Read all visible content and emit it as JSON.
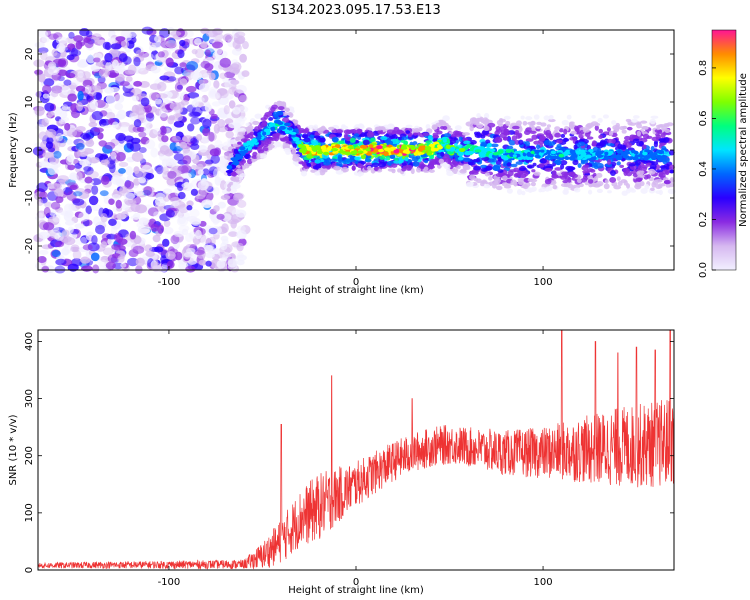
{
  "title": "S134.2023.095.17.53.E13",
  "chart_data": [
    {
      "type": "heatmap",
      "xlabel": "Height of straight line (km)",
      "ylabel": "Frequency (Hz)",
      "xlim": [
        -170,
        170
      ],
      "ylim": [
        -25,
        25
      ],
      "xticks": [
        -100,
        0,
        100
      ],
      "yticks": [
        -20,
        -10,
        0,
        10,
        20
      ],
      "colorbar": {
        "label": "Normalized spectral amplitude",
        "range": [
          0,
          0.95
        ],
        "ticks": [
          0.0,
          0.2,
          0.4,
          0.6,
          0.8
        ],
        "colors": [
          "#f2f0ff",
          "#d6b8f0",
          "#8a2be2",
          "#2a00ff",
          "#0066ff",
          "#00e5ff",
          "#00ff7f",
          "#7fff00",
          "#ffff00",
          "#ff8c00",
          "#ff1493"
        ]
      },
      "track": {
        "x": [
          -68,
          -60,
          -50,
          -42,
          -38,
          -35,
          -32,
          -28,
          -20,
          0,
          20,
          40,
          48,
          50,
          60,
          80,
          100,
          120,
          140,
          165
        ],
        "y": [
          -4,
          0,
          3,
          6,
          5,
          4,
          2,
          0,
          0,
          0,
          0,
          0,
          2,
          0,
          0,
          -1,
          -1,
          -1,
          -1,
          -1
        ],
        "intensity": [
          0.35,
          0.45,
          0.5,
          0.55,
          0.5,
          0.45,
          0.5,
          0.8,
          0.9,
          0.85,
          0.95,
          0.85,
          0.6,
          0.65,
          0.6,
          0.55,
          0.5,
          0.5,
          0.45,
          0.45
        ]
      },
      "noise_region": [
        -170,
        -65
      ]
    },
    {
      "type": "line",
      "xlabel": "Height of straight line (km)",
      "ylabel": "SNR (10 * v/v)",
      "xlim": [
        -170,
        170
      ],
      "ylim": [
        0,
        420
      ],
      "xticks": [
        -100,
        0,
        100
      ],
      "yticks": [
        0,
        100,
        200,
        300,
        400
      ],
      "color": "#ee3333",
      "envelope": {
        "x": [
          -170,
          -60,
          -50,
          -40,
          -30,
          -20,
          -10,
          0,
          10,
          20,
          30,
          40,
          50,
          60,
          80,
          100,
          120,
          140,
          160,
          170
        ],
        "y": [
          8,
          10,
          25,
          50,
          90,
          110,
          130,
          150,
          170,
          190,
          205,
          215,
          220,
          215,
          205,
          205,
          210,
          215,
          220,
          225
        ]
      },
      "noise_amp": {
        "x": [
          -170,
          -60,
          -40,
          -20,
          0,
          20,
          60,
          100,
          140,
          170
        ],
        "y": [
          5,
          8,
          40,
          60,
          40,
          35,
          35,
          45,
          70,
          80
        ]
      },
      "peaks": [
        [
          -40,
          255
        ],
        [
          -13,
          340
        ],
        [
          30,
          300
        ],
        [
          110,
          420
        ],
        [
          128,
          400
        ],
        [
          140,
          380
        ],
        [
          150,
          390
        ],
        [
          160,
          385
        ],
        [
          168,
          420
        ]
      ]
    }
  ]
}
